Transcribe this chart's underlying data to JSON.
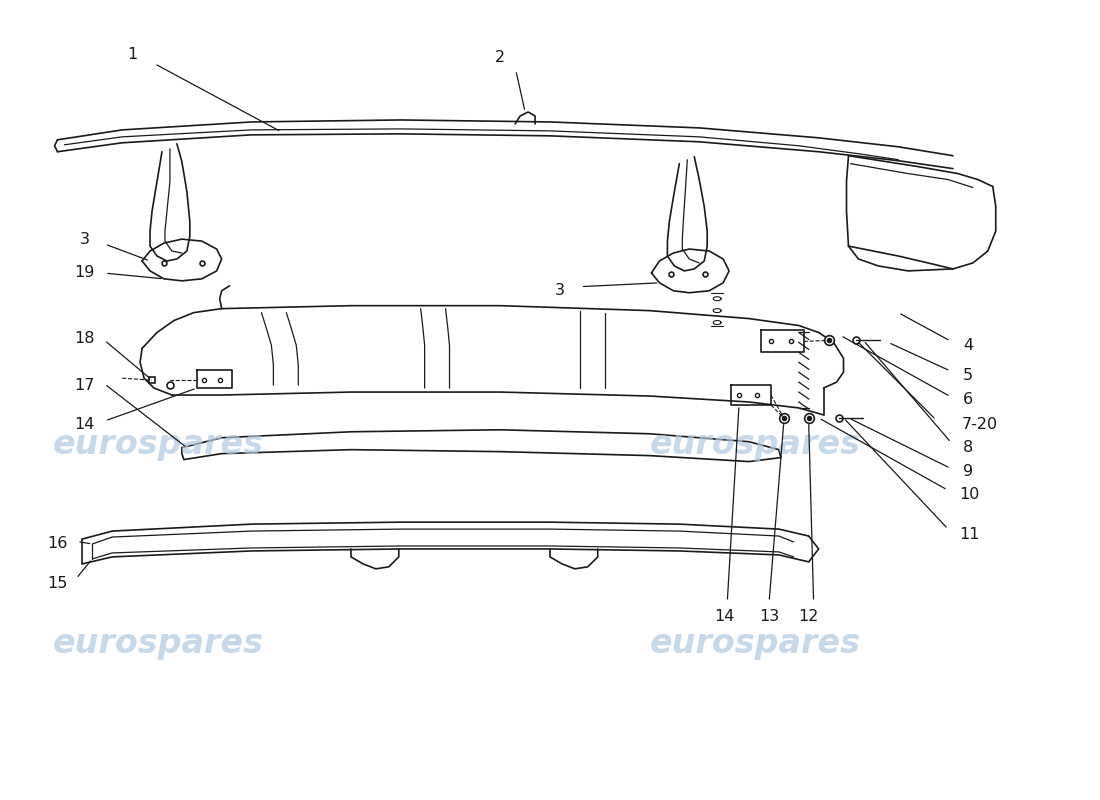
{
  "bg_color": "#ffffff",
  "line_color": "#1a1a1a",
  "wm_color": "#b0c8e0",
  "wm_text": "eurospares",
  "fig_width": 11.0,
  "fig_height": 8.0,
  "label_fontsize": 11.5
}
